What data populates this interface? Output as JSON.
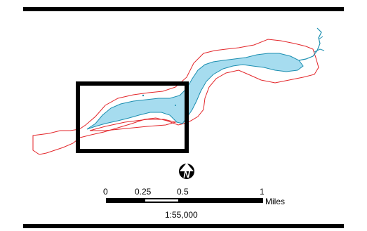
{
  "colors": {
    "boundary": "#e3262a",
    "water_fill": "#a6dcef",
    "water_stroke": "#1b8eb0",
    "frame": "#000000",
    "background": "#ffffff"
  },
  "icons": {
    "north_arrow": "north-arrow-icon"
  },
  "north_arrow": {
    "letter": "N"
  },
  "scale_bar": {
    "ticks": [
      "0",
      "0.25",
      "0.5",
      "1"
    ],
    "unit": "Miles"
  },
  "scale_ratio": "1:55,000"
}
